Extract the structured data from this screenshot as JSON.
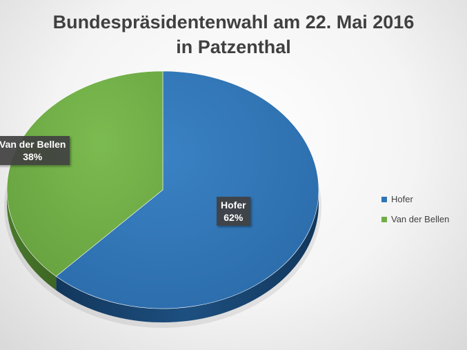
{
  "chart_data": {
    "type": "pie",
    "title_lines": [
      "Bundespräsidentenwahl am 22. Mai 2016",
      "in Patzenthal"
    ],
    "categories": [
      "Hofer",
      "Van der Bellen"
    ],
    "values": [
      62,
      38
    ],
    "data_labels": [
      {
        "name": "Hofer",
        "percent": "62%"
      },
      {
        "name": "Van der Bellen",
        "percent": "38%"
      }
    ],
    "colors": [
      "#2E75B6",
      "#70AD47"
    ],
    "legend_position": "right",
    "style": "3d"
  }
}
